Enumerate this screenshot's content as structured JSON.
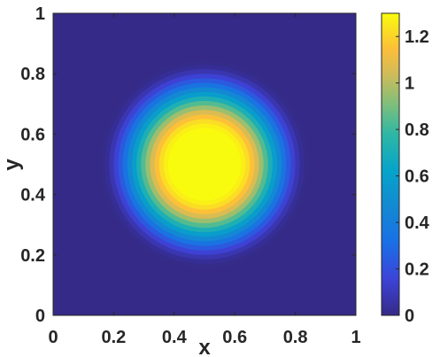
{
  "chart_data": {
    "type": "heatmap",
    "title": "",
    "xlabel": "x",
    "ylabel": "y",
    "xlim": [
      0,
      1
    ],
    "ylim": [
      0,
      1
    ],
    "x_ticks": [
      "0",
      "0.2",
      "0.4",
      "0.6",
      "0.8",
      "1"
    ],
    "y_ticks": [
      "0",
      "0.2",
      "0.4",
      "0.6",
      "0.8",
      "1"
    ],
    "colorbar": {
      "range": [
        0,
        1.3
      ],
      "ticks": [
        "0",
        "0.2",
        "0.4",
        "0.6",
        "0.8",
        "1",
        "1.2"
      ],
      "colormap": "parula"
    },
    "field": {
      "shape": "radial bump",
      "center": [
        0.5,
        0.5
      ],
      "support_radius": 0.36,
      "peak_value": 1.3,
      "plateau_radius": 0.12
    },
    "grid": false,
    "legend": "none"
  }
}
